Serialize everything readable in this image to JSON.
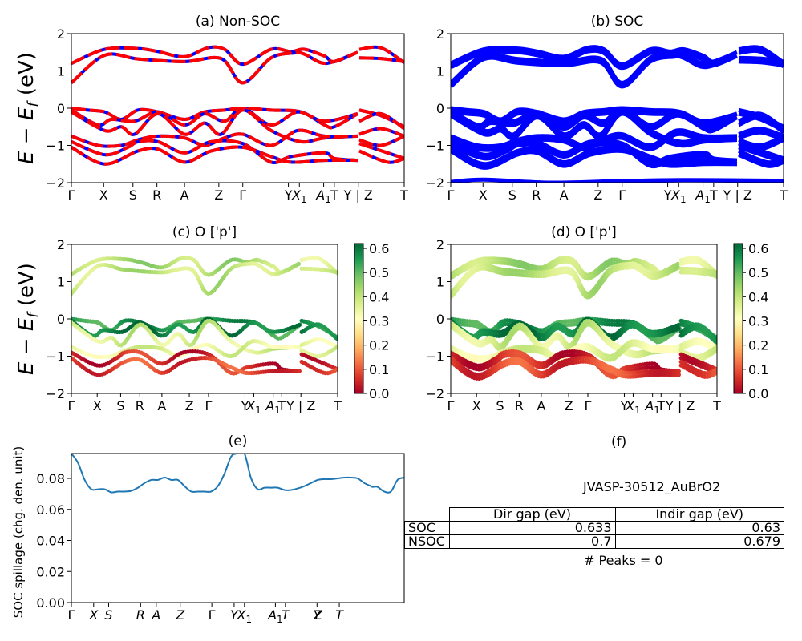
{
  "figure_id": "JVASP-30512_AuBrO2",
  "colors": {
    "nonsoc_line": "#ff0000",
    "nonsoc_dash": "#0000ff",
    "soc_line": "#0000ff",
    "spillage_line": "#1f77b4"
  },
  "chart_data": [
    {
      "panel": "a",
      "type": "line",
      "title": "(a) Non-SOC",
      "ylabel": "E − E_f (eV)",
      "ylim": [
        -2,
        2
      ],
      "yticks": [
        2,
        1,
        0,
        -1,
        -2
      ],
      "xticks": [
        "Γ",
        "X",
        "S",
        "R",
        "A",
        "Z",
        "Γ",
        "Y",
        "X₁",
        "A₁",
        "T",
        "Y | Z",
        "T"
      ],
      "xtick_pos": [
        0,
        0.097,
        0.185,
        0.257,
        0.34,
        0.443,
        0.515,
        0.652,
        0.685,
        0.758,
        0.79,
        0.862,
        1.0
      ],
      "style": "red line with blue dashes",
      "series": [
        {
          "name": "cb2",
          "points": [
            [
              0,
              1.2
            ],
            [
              0.1,
              1.58
            ],
            [
              0.2,
              1.6
            ],
            [
              0.26,
              1.52
            ],
            [
              0.34,
              1.38
            ],
            [
              0.41,
              1.62
            ],
            [
              0.46,
              1.58
            ],
            [
              0.515,
              1.18
            ],
            [
              0.6,
              1.58
            ],
            [
              0.66,
              1.52
            ],
            [
              0.7,
              1.58
            ],
            [
              0.76,
              1.4
            ],
            [
              0.79,
              1.25
            ],
            [
              0.86,
              1.5
            ]
          ]
        },
        {
          "name": "cb1",
          "points": [
            [
              0,
              0.68
            ],
            [
              0.1,
              1.42
            ],
            [
              0.2,
              1.32
            ],
            [
              0.34,
              1.25
            ],
            [
              0.45,
              1.33
            ],
            [
              0.515,
              0.68
            ],
            [
              0.6,
              1.35
            ],
            [
              0.67,
              1.48
            ],
            [
              0.7,
              1.45
            ],
            [
              0.75,
              1.22
            ],
            [
              0.79,
              1.25
            ],
            [
              0.86,
              1.5
            ]
          ]
        },
        {
          "name": "cb2b",
          "points": [
            [
              0.865,
              1.58
            ],
            [
              0.93,
              1.62
            ],
            [
              1.0,
              1.22
            ]
          ]
        },
        {
          "name": "cb1b",
          "points": [
            [
              0.865,
              1.35
            ],
            [
              0.93,
              1.33
            ],
            [
              1.0,
              1.25
            ]
          ]
        },
        {
          "name": "vb1",
          "points": [
            [
              0,
              0.0
            ],
            [
              0.05,
              -0.05
            ],
            [
              0.1,
              -0.1
            ],
            [
              0.15,
              -0.3
            ],
            [
              0.2,
              -0.05
            ],
            [
              0.26,
              -0.1
            ],
            [
              0.34,
              -0.3
            ],
            [
              0.4,
              -0.1
            ],
            [
              0.46,
              -0.05
            ],
            [
              0.515,
              0.0
            ],
            [
              0.6,
              -0.05
            ],
            [
              0.69,
              -0.1
            ],
            [
              0.76,
              -0.45
            ],
            [
              0.79,
              -0.5
            ],
            [
              0.86,
              -0.15
            ]
          ]
        },
        {
          "name": "vb2",
          "points": [
            [
              0,
              -0.05
            ],
            [
              0.08,
              -0.45
            ],
            [
              0.12,
              -0.3
            ],
            [
              0.19,
              -0.35
            ],
            [
              0.26,
              -0.1
            ],
            [
              0.34,
              -0.45
            ],
            [
              0.4,
              -0.15
            ],
            [
              0.46,
              -0.35
            ],
            [
              0.515,
              0.0
            ],
            [
              0.6,
              -0.45
            ],
            [
              0.68,
              -0.1
            ],
            [
              0.76,
              -0.35
            ],
            [
              0.86,
              -0.15
            ]
          ]
        },
        {
          "name": "vb3",
          "points": [
            [
              0,
              -0.1
            ],
            [
              0.1,
              -0.6
            ],
            [
              0.15,
              -0.5
            ],
            [
              0.19,
              -0.7
            ],
            [
              0.26,
              -0.15
            ],
            [
              0.34,
              -0.7
            ],
            [
              0.4,
              -0.4
            ],
            [
              0.45,
              -0.7
            ],
            [
              0.515,
              -0.05
            ],
            [
              0.6,
              -0.6
            ],
            [
              0.69,
              -0.9
            ],
            [
              0.76,
              -0.8
            ],
            [
              0.86,
              -0.75
            ]
          ]
        },
        {
          "name": "vb4",
          "points": [
            [
              0,
              -0.75
            ],
            [
              0.08,
              -1.0
            ],
            [
              0.15,
              -1.0
            ],
            [
              0.2,
              -0.85
            ],
            [
              0.26,
              -0.75
            ],
            [
              0.34,
              -0.8
            ],
            [
              0.4,
              -1.0
            ],
            [
              0.46,
              -0.8
            ],
            [
              0.515,
              -0.7
            ],
            [
              0.6,
              -1.0
            ],
            [
              0.68,
              -0.6
            ],
            [
              0.76,
              -0.75
            ],
            [
              0.86,
              -0.75
            ]
          ]
        },
        {
          "name": "vb5",
          "points": [
            [
              0,
              -0.9
            ],
            [
              0.1,
              -1.25
            ],
            [
              0.17,
              -1.05
            ],
            [
              0.2,
              -0.9
            ],
            [
              0.26,
              -0.9
            ],
            [
              0.34,
              -1.2
            ],
            [
              0.42,
              -0.9
            ],
            [
              0.515,
              -0.95
            ],
            [
              0.6,
              -1.45
            ],
            [
              0.66,
              -1.3
            ],
            [
              0.76,
              -1.2
            ],
            [
              0.79,
              -1.35
            ],
            [
              0.86,
              -1.4
            ]
          ]
        },
        {
          "name": "vb6",
          "points": [
            [
              0,
              -1.05
            ],
            [
              0.1,
              -1.5
            ],
            [
              0.2,
              -1.15
            ],
            [
              0.26,
              -1.1
            ],
            [
              0.34,
              -1.45
            ],
            [
              0.42,
              -1.15
            ],
            [
              0.515,
              -1.05
            ],
            [
              0.6,
              -1.3
            ],
            [
              0.66,
              -1.45
            ],
            [
              0.76,
              -1.4
            ],
            [
              0.86,
              -1.4
            ]
          ]
        },
        {
          "name": "vb7",
          "points": [
            [
              0.865,
              -0.05
            ],
            [
              0.93,
              -0.2
            ],
            [
              1.0,
              -0.5
            ]
          ]
        },
        {
          "name": "vb8",
          "points": [
            [
              0.865,
              -0.35
            ],
            [
              0.93,
              -0.15
            ],
            [
              1.0,
              -0.55
            ]
          ]
        },
        {
          "name": "vb9",
          "points": [
            [
              0.865,
              -0.7
            ],
            [
              0.93,
              -0.55
            ],
            [
              1.0,
              -0.75
            ]
          ]
        },
        {
          "name": "vb10",
          "points": [
            [
              0.865,
              -0.85
            ],
            [
              0.93,
              -1.0
            ],
            [
              1.0,
              -0.75
            ]
          ]
        },
        {
          "name": "vb11",
          "points": [
            [
              0.865,
              -0.95
            ],
            [
              0.95,
              -1.2
            ],
            [
              1.0,
              -1.35
            ]
          ]
        },
        {
          "name": "vb12",
          "points": [
            [
              0.865,
              -1.15
            ],
            [
              0.95,
              -1.45
            ],
            [
              1.0,
              -1.35
            ]
          ]
        }
      ]
    },
    {
      "panel": "b",
      "type": "line",
      "title": "(b) SOC",
      "ylim": [
        -2,
        2
      ],
      "yticks": [
        2,
        1,
        0,
        -1,
        -2
      ],
      "xticks": [
        "Γ",
        "X",
        "S",
        "R",
        "A",
        "Z",
        "Γ",
        "Y",
        "X₁",
        "A₁",
        "T",
        "Y | Z",
        "T"
      ],
      "xtick_pos": [
        0,
        0.097,
        0.185,
        0.257,
        0.34,
        0.443,
        0.515,
        0.652,
        0.685,
        0.758,
        0.79,
        0.862,
        1.0
      ],
      "style": "thick blue lines (shifted replica of non-SOC bands)",
      "energy_shift": -0.05
    },
    {
      "panel": "c",
      "type": "scatter",
      "title": "(c)  O ['p']",
      "ylabel": "E − E_f (eV)",
      "ylim": [
        -2,
        2
      ],
      "yticks": [
        2,
        1,
        0,
        -1,
        -2
      ],
      "xticks": [
        "Γ",
        "X",
        "S",
        "R",
        "A",
        "Z",
        "Γ",
        "Y",
        "X₁",
        "A₁",
        "T",
        "Y | Z",
        "T"
      ],
      "xtick_pos": [
        0,
        0.097,
        0.185,
        0.257,
        0.34,
        0.443,
        0.515,
        0.652,
        0.685,
        0.758,
        0.79,
        0.862,
        1.0
      ],
      "colorbar": {
        "cmap": "RdYlGn",
        "min": 0.0,
        "max": 0.62,
        "ticks": [
          0.0,
          0.1,
          0.2,
          0.3,
          0.4,
          0.5,
          0.6
        ]
      },
      "band_weights": {
        "cb2": 0.42,
        "cb1": 0.4,
        "cb2b": 0.38,
        "cb1b": 0.42,
        "vb1": 0.55,
        "vb2": 0.6,
        "vb3": 0.38,
        "vb4": 0.35,
        "vb5": 0.05,
        "vb6": 0.08,
        "vb7": 0.58,
        "vb8": 0.6,
        "vb9": 0.36,
        "vb10": 0.4,
        "vb11": 0.06,
        "vb12": 0.1
      }
    },
    {
      "panel": "d",
      "type": "scatter",
      "title": "(d) O ['p']",
      "ylim": [
        -2,
        2
      ],
      "yticks": [
        2,
        1,
        0,
        -1,
        -2
      ],
      "xticks": [
        "Γ",
        "X",
        "S",
        "R",
        "A",
        "Z",
        "Γ",
        "Y",
        "X₁",
        "A₁",
        "T",
        "Y | Z",
        "T"
      ],
      "xtick_pos": [
        0,
        0.097,
        0.185,
        0.257,
        0.34,
        0.443,
        0.515,
        0.652,
        0.685,
        0.758,
        0.79,
        0.862,
        1.0
      ],
      "colorbar": {
        "cmap": "RdYlGn",
        "min": 0.0,
        "max": 0.62,
        "ticks": [
          0.0,
          0.1,
          0.2,
          0.3,
          0.4,
          0.5,
          0.6
        ]
      }
    },
    {
      "panel": "e",
      "type": "line",
      "title": "(e)",
      "ylabel": "SOC spillage (chg. den. unit)",
      "ylim": [
        0.0,
        0.096
      ],
      "yticks": [
        0.0,
        0.02,
        0.04,
        0.06,
        0.08
      ],
      "xticks": [
        "Γ",
        "X",
        "S",
        "R",
        "A",
        "Z",
        "Γ",
        "Y",
        "X₁",
        "A₁",
        "T",
        "Y",
        "Z",
        "T"
      ],
      "xtick_pos": [
        0,
        0.067,
        0.112,
        0.208,
        0.255,
        0.327,
        0.422,
        0.489,
        0.52,
        0.613,
        0.643,
        0.738,
        0.741,
        0.805
      ],
      "x": [
        0,
        0.02,
        0.04,
        0.06,
        0.08,
        0.1,
        0.12,
        0.14,
        0.16,
        0.18,
        0.2,
        0.22,
        0.24,
        0.26,
        0.28,
        0.3,
        0.32,
        0.34,
        0.36,
        0.38,
        0.4,
        0.42,
        0.44,
        0.46,
        0.48,
        0.5,
        0.52,
        0.54,
        0.56,
        0.58,
        0.6,
        0.62,
        0.64,
        0.66,
        0.68,
        0.7,
        0.72,
        0.74,
        0.76,
        0.78,
        0.8,
        0.82,
        0.84,
        0.86,
        0.88,
        0.9,
        0.905,
        0.92,
        0.94,
        0.96,
        0.98,
        1.0
      ],
      "y": [
        0.096,
        0.09,
        0.079,
        0.073,
        0.073,
        0.073,
        0.071,
        0.0715,
        0.0715,
        0.072,
        0.074,
        0.077,
        0.079,
        0.079,
        0.0805,
        0.079,
        0.079,
        0.075,
        0.0715,
        0.0715,
        0.0715,
        0.0715,
        0.075,
        0.083,
        0.094,
        0.096,
        0.096,
        0.08,
        0.073,
        0.074,
        0.074,
        0.074,
        0.0725,
        0.0725,
        0.0735,
        0.075,
        0.077,
        0.079,
        0.0795,
        0.0795,
        0.08,
        0.0805,
        0.0805,
        0.08,
        0.077,
        0.075,
        0.0745,
        0.0745,
        0.0715,
        0.0715,
        0.079,
        0.0805
      ]
    }
  ],
  "info_panel": {
    "title": "(f)",
    "material": "JVASP-30512_AuBrO2",
    "table": {
      "columns": [
        "",
        "Dir gap (eV)",
        "Indir gap (eV)"
      ],
      "rows": [
        {
          "label": "SOC",
          "dir": "0.633",
          "indir": "0.63"
        },
        {
          "label": "NSOC",
          "dir": "0.7",
          "indir": "0.679"
        }
      ]
    },
    "peaks": "# Peaks = 0"
  }
}
